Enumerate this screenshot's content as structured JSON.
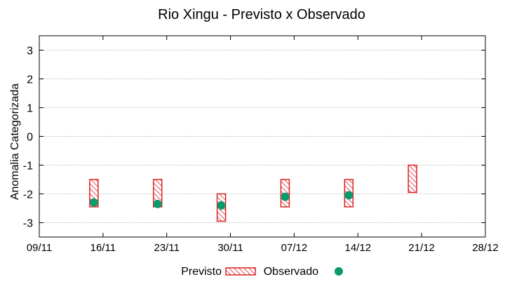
{
  "chart_data": {
    "type": "floating-bar+scatter",
    "title": "Rio Xingu - Previsto x Observado",
    "xlabel": "",
    "ylabel": "Anomalia Categorizada",
    "x_ticks": [
      "09/11",
      "16/11",
      "23/11",
      "30/11",
      "07/12",
      "14/12",
      "21/12",
      "28/12"
    ],
    "x_tick_days": [
      0,
      7,
      14,
      21,
      28,
      35,
      42,
      49
    ],
    "xlim_days": [
      0,
      49
    ],
    "y_ticks": [
      "3",
      "2",
      "1",
      "0",
      "-1",
      "-2",
      "-3"
    ],
    "y_tick_values": [
      3,
      2,
      1,
      0,
      -1,
      -2,
      -3
    ],
    "ylim": [
      -3.5,
      3.5
    ],
    "grid": "horizontal-dotted",
    "legend": {
      "placement": "bottom",
      "previsto_label": "Previsto",
      "observado_label": "Observado"
    },
    "colors": {
      "previsto": "#dd2222",
      "observado": "#0a9b6a",
      "grid": "#a0a0a0"
    },
    "series": [
      {
        "name": "Previsto",
        "kind": "range",
        "points": [
          {
            "day": 6,
            "low": -2.45,
            "high": -1.5
          },
          {
            "day": 13,
            "low": -2.45,
            "high": -1.5
          },
          {
            "day": 20,
            "low": -2.95,
            "high": -2.0
          },
          {
            "day": 27,
            "low": -2.45,
            "high": -1.5
          },
          {
            "day": 34,
            "low": -2.45,
            "high": -1.5
          },
          {
            "day": 41,
            "low": -1.95,
            "high": -1.0
          }
        ]
      },
      {
        "name": "Observado",
        "kind": "point",
        "points": [
          {
            "day": 6,
            "value": -2.3
          },
          {
            "day": 13,
            "value": -2.35
          },
          {
            "day": 20,
            "value": -2.4
          },
          {
            "day": 27,
            "value": -2.1
          },
          {
            "day": 34,
            "value": -2.05
          }
        ]
      }
    ]
  }
}
